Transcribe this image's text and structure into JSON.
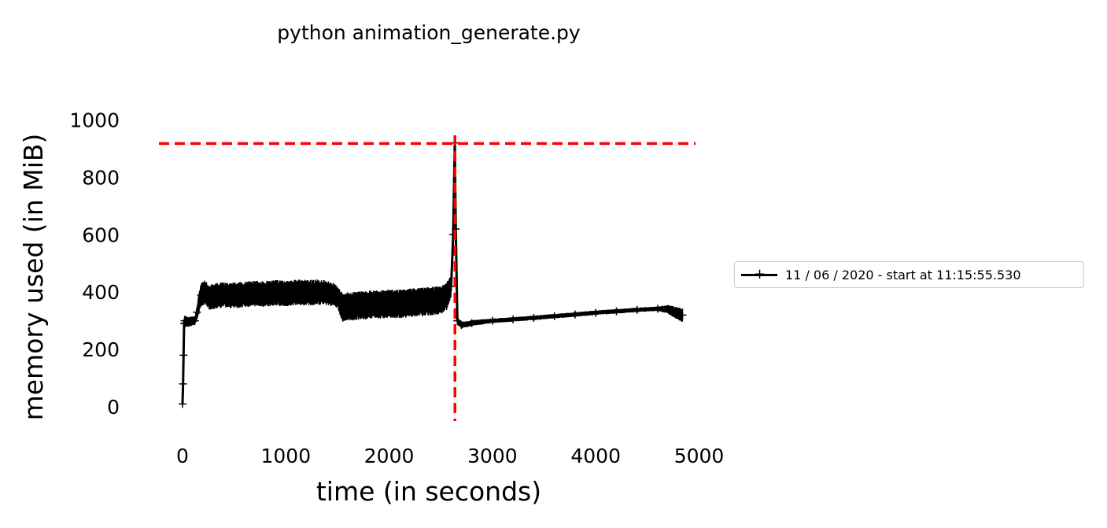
{
  "chart_data": {
    "type": "line",
    "title": "python animation_generate.py",
    "xlabel": "time (in seconds)",
    "ylabel": "memory used (in MiB)",
    "xlim": [
      -300,
      5000
    ],
    "ylim": [
      -50,
      1050
    ],
    "xticks": [
      0,
      1000,
      2000,
      3000,
      4000,
      5000
    ],
    "yticks": [
      0,
      200,
      400,
      600,
      800,
      1000
    ],
    "grid": false,
    "legend_position": "right",
    "series": [
      {
        "name": "11 / 06 / 2020 - start at 11:15:55.530",
        "color": "#000000",
        "marker": "+",
        "points": [
          [
            0,
            10
          ],
          [
            5,
            80
          ],
          [
            10,
            180
          ],
          [
            15,
            290
          ],
          [
            20,
            300
          ],
          [
            40,
            295
          ],
          [
            80,
            298
          ],
          [
            120,
            300
          ],
          [
            140,
            330
          ],
          [
            180,
            390
          ],
          [
            220,
            400
          ],
          [
            260,
            380
          ],
          [
            300,
            385
          ],
          [
            400,
            390
          ],
          [
            500,
            388
          ],
          [
            600,
            392
          ],
          [
            700,
            395
          ],
          [
            800,
            393
          ],
          [
            900,
            398
          ],
          [
            1000,
            395
          ],
          [
            1100,
            400
          ],
          [
            1200,
            398
          ],
          [
            1300,
            400
          ],
          [
            1400,
            398
          ],
          [
            1500,
            385
          ],
          [
            1550,
            345
          ],
          [
            1600,
            350
          ],
          [
            1700,
            352
          ],
          [
            1800,
            355
          ],
          [
            1900,
            358
          ],
          [
            2000,
            360
          ],
          [
            2100,
            358
          ],
          [
            2200,
            362
          ],
          [
            2300,
            365
          ],
          [
            2400,
            368
          ],
          [
            2500,
            372
          ],
          [
            2550,
            380
          ],
          [
            2600,
            420
          ],
          [
            2620,
            600
          ],
          [
            2635,
            920
          ],
          [
            2645,
            620
          ],
          [
            2660,
            300
          ],
          [
            2700,
            285
          ],
          [
            2800,
            292
          ],
          [
            3000,
            300
          ],
          [
            3200,
            305
          ],
          [
            3400,
            310
          ],
          [
            3600,
            316
          ],
          [
            3800,
            322
          ],
          [
            4000,
            328
          ],
          [
            4200,
            333
          ],
          [
            4400,
            338
          ],
          [
            4600,
            342
          ],
          [
            4700,
            340
          ],
          [
            4760,
            330
          ],
          [
            4800,
            325
          ],
          [
            4840,
            320
          ]
        ],
        "band": [
          [
            0,
            0
          ],
          [
            20,
            20
          ],
          [
            120,
            15
          ],
          [
            160,
            40
          ],
          [
            300,
            45
          ],
          [
            800,
            45
          ],
          [
            1300,
            45
          ],
          [
            1500,
            40
          ],
          [
            1550,
            50
          ],
          [
            2000,
            50
          ],
          [
            2550,
            50
          ],
          [
            2600,
            40
          ],
          [
            2660,
            12
          ],
          [
            3000,
            8
          ],
          [
            4600,
            8
          ],
          [
            4760,
            20
          ],
          [
            4840,
            25
          ]
        ]
      }
    ],
    "reference_lines": [
      {
        "orientation": "horizontal",
        "value": 918,
        "color": "#ff0000",
        "style": "dashed"
      },
      {
        "orientation": "vertical",
        "value": 2637,
        "color": "#ff0000",
        "style": "dashed"
      }
    ]
  }
}
